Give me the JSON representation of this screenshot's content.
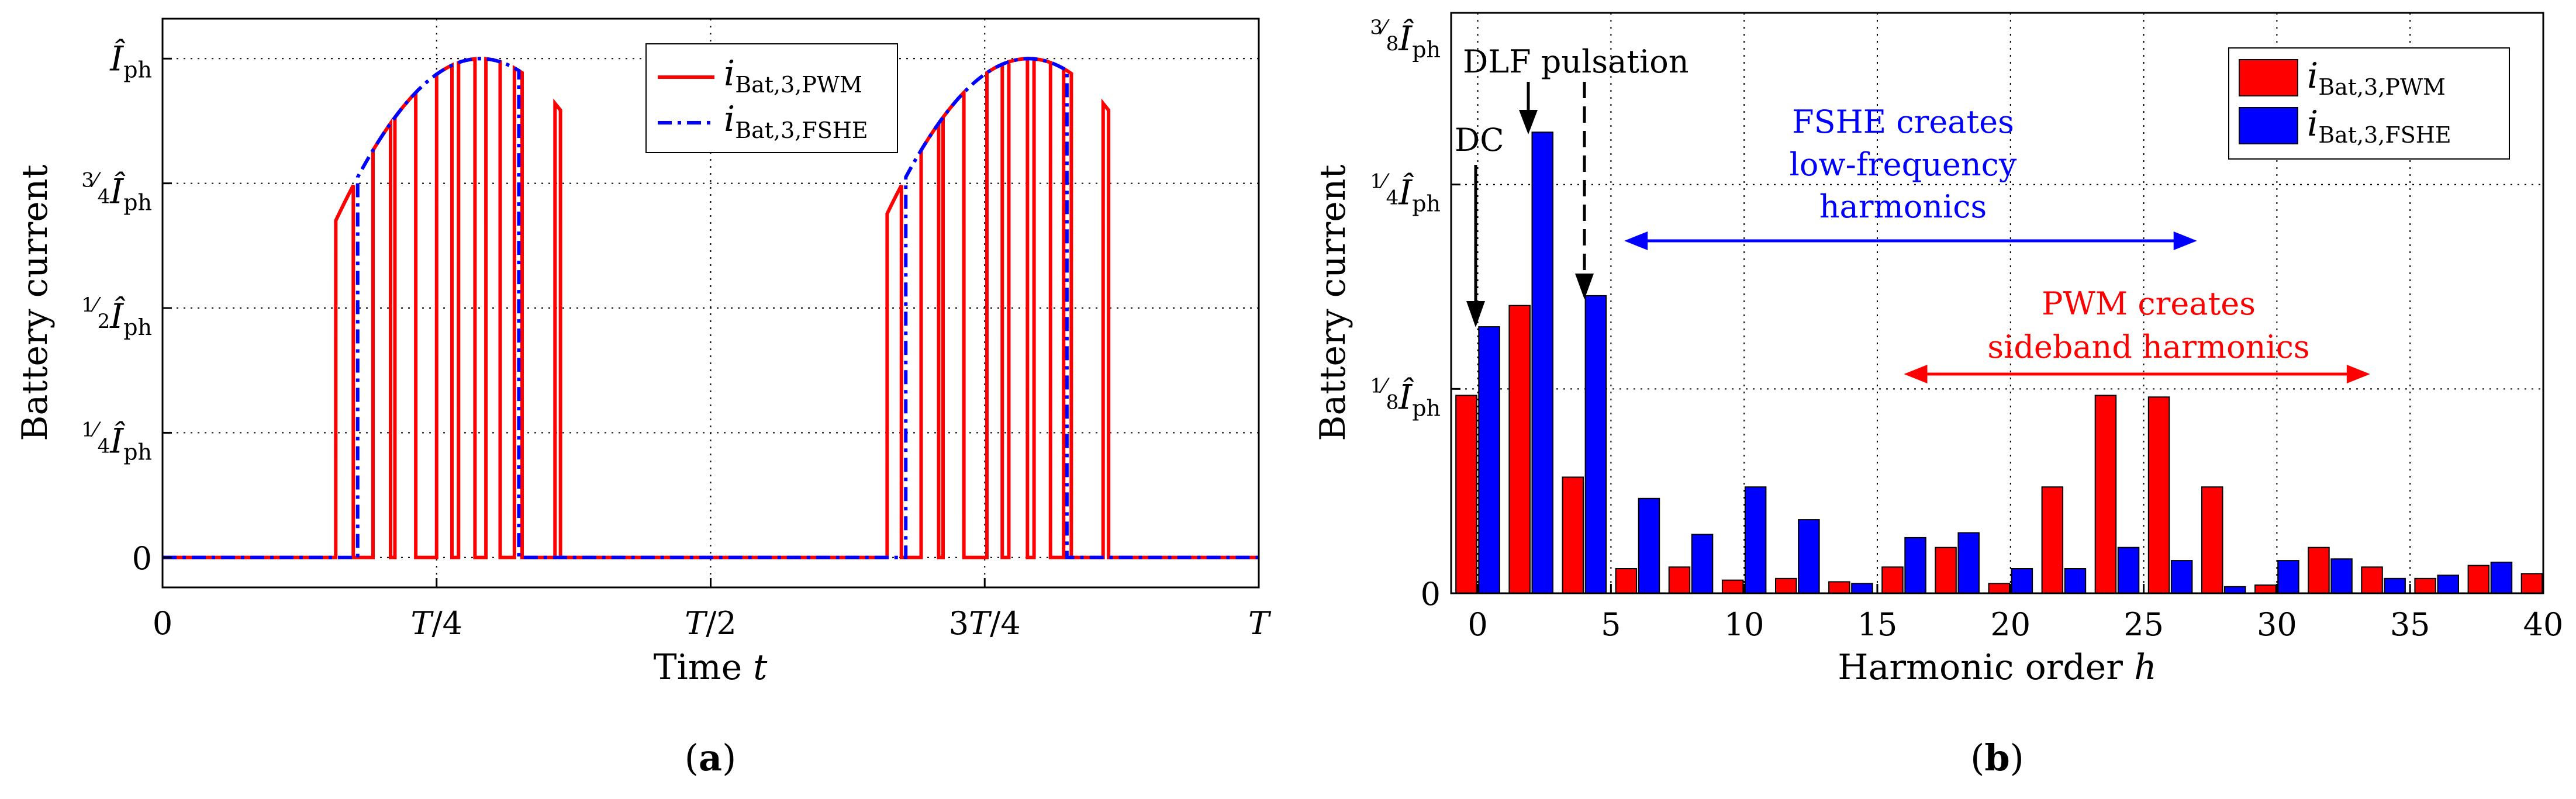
{
  "chart_data": [
    {
      "type": "line",
      "panel": "(a)",
      "caption": "(a)",
      "xlabel": "Time t",
      "ylabel": "Battery current",
      "xlim": [
        0,
        1
      ],
      "ylim": [
        -0.06,
        1.08
      ],
      "xticks": [
        0,
        0.25,
        0.5,
        0.75,
        1
      ],
      "xtick_labels": [
        "0",
        "T/4",
        "T/2",
        "3T/4",
        "T"
      ],
      "yticks": [
        0,
        0.25,
        0.5,
        0.75,
        1
      ],
      "ytick_labels": [
        {
          "frac": "",
          "sym": "0"
        },
        {
          "frac": "1/4",
          "sym": "Î_ph"
        },
        {
          "frac": "1/2",
          "sym": "Î_ph"
        },
        {
          "frac": "3/4",
          "sym": "Î_ph"
        },
        {
          "frac": "",
          "sym": "Î_ph"
        }
      ],
      "grid": true,
      "legend": {
        "position": "top-right"
      },
      "series": [
        {
          "name": "i_Bat,3,PWM",
          "label_main": "i",
          "label_sub": "Bat,3,PWM",
          "color": "#ff0000",
          "style": "solid",
          "pulses": [
            [
              0.158,
              0.174
            ],
            [
              0.192,
              0.208
            ],
            [
              0.212,
              0.231
            ],
            [
              0.25,
              0.264
            ],
            [
              0.27,
              0.285
            ],
            [
              0.295,
              0.308
            ],
            [
              0.321,
              0.328
            ],
            [
              0.358,
              0.363
            ],
            [
              0.661,
              0.674
            ],
            [
              0.692,
              0.708
            ],
            [
              0.712,
              0.731
            ],
            [
              0.752,
              0.766
            ],
            [
              0.772,
              0.789
            ],
            [
              0.795,
              0.81
            ],
            [
              0.822,
              0.829
            ],
            [
              0.858,
              0.863
            ]
          ]
        },
        {
          "name": "i_Bat,3,FSHE",
          "label_main": "i",
          "label_sub": "Bat,3,FSHE",
          "color": "#0000ff",
          "style": "dashdot",
          "pulses": [
            [
              0.178,
              0.325
            ],
            [
              0.678,
              0.825
            ]
          ]
        }
      ]
    },
    {
      "type": "bar",
      "panel": "(b)",
      "caption": "(b)",
      "xlabel": "Harmonic order h",
      "ylabel": "Battery current",
      "xlim": [
        -1,
        40
      ],
      "ylim": [
        0,
        0.355
      ],
      "xticks": [
        0,
        5,
        10,
        15,
        20,
        25,
        30,
        35,
        40
      ],
      "yticks": [
        0,
        0.125,
        0.25,
        0.375
      ],
      "ytick_labels": [
        {
          "frac": "",
          "sym": "0"
        },
        {
          "frac": "1/8",
          "sym": "Î_ph"
        },
        {
          "frac": "1/4",
          "sym": "Î_ph"
        },
        {
          "frac": "3/8",
          "sym": "Î_ph"
        }
      ],
      "grid": true,
      "legend": {
        "position": "top-right"
      },
      "categories": [
        0,
        2,
        4,
        6,
        8,
        10,
        12,
        14,
        16,
        18,
        20,
        22,
        24,
        26,
        28,
        30,
        32,
        34,
        36,
        38,
        40
      ],
      "series": [
        {
          "name": "i_Bat,3,PWM",
          "label_main": "i",
          "label_sub": "Bat,3,PWM",
          "color": "#ff0000",
          "values": [
            0.121,
            0.176,
            0.071,
            0.015,
            0.016,
            0.008,
            0.009,
            0.007,
            0.016,
            0.028,
            0.006,
            0.065,
            0.121,
            0.12,
            0.065,
            0.005,
            0.028,
            0.016,
            0.009,
            0.017,
            0.012
          ]
        },
        {
          "name": "i_Bat,3,FSHE",
          "label_main": "i",
          "label_sub": "Bat,3,FSHE",
          "color": "#0000ff",
          "values": [
            0.163,
            0.282,
            0.182,
            0.058,
            0.036,
            0.065,
            0.045,
            0.006,
            0.034,
            0.037,
            0.015,
            0.015,
            0.028,
            0.02,
            0.004,
            0.02,
            0.021,
            0.009,
            0.011,
            0.019,
            0.0
          ]
        }
      ],
      "annotations": {
        "dc": "DC",
        "dlf": "DLF pulsation",
        "fshe_line1": "FSHE creates",
        "fshe_line2": "low-frequency",
        "fshe_line3": "harmonics",
        "pwm_line1": "PWM creates",
        "pwm_line2": "sideband harmonics",
        "fshe_range": [
          5.5,
          27
        ],
        "pwm_range": [
          16,
          33.5
        ]
      }
    }
  ]
}
